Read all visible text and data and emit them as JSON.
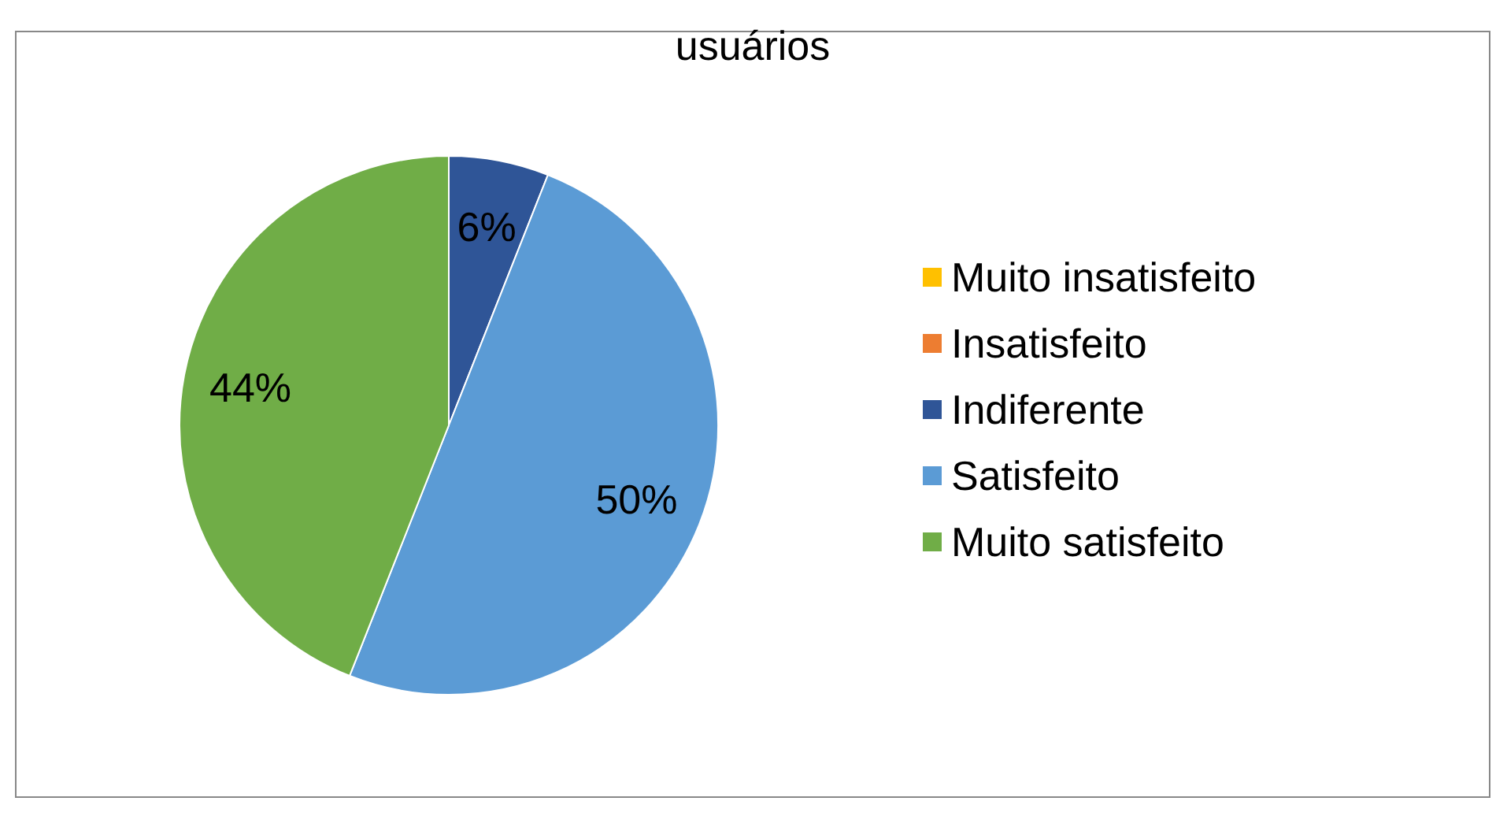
{
  "chart_data": {
    "type": "pie",
    "title": "usuários",
    "categories": [
      "Muito insatisfeito",
      "Insatisfeito",
      "Indiferente",
      "Satisfeito",
      "Muito satisfeito"
    ],
    "values": [
      0,
      0,
      6,
      50,
      44
    ],
    "colors": [
      "#ffc000",
      "#ed7d31",
      "#2f5597",
      "#5b9bd5",
      "#70ad47"
    ],
    "value_labels": [
      null,
      null,
      "6%",
      "50%",
      "44%"
    ],
    "legend": "right"
  }
}
